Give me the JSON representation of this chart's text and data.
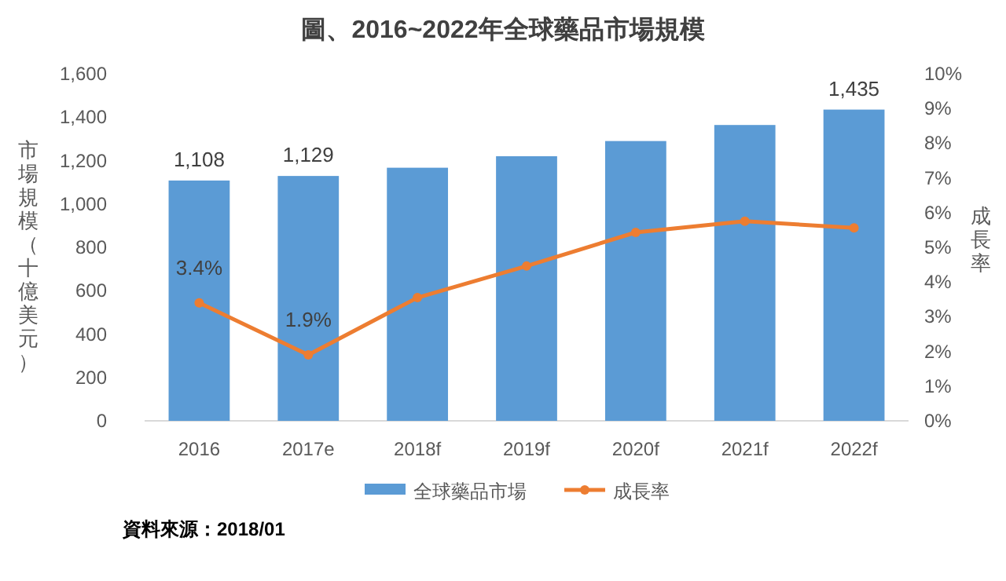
{
  "chart_data": {
    "type": "bar",
    "title": "圖、2016~2022年全球藥品市場規模",
    "ylabel": "市場規模（十億美元）",
    "y2label": "成長率",
    "categories": [
      "2016",
      "2017e",
      "2018f",
      "2019f",
      "2020f",
      "2021f",
      "2022f"
    ],
    "series": [
      {
        "name": "全球藥品市場",
        "color": "#5b9bd5",
        "values": [
          1108,
          1129,
          1167,
          1220,
          1290,
          1364,
          1435
        ],
        "value_labels": [
          "1,108",
          "1,129",
          null,
          null,
          null,
          null,
          "1,435"
        ]
      },
      {
        "name": "成長率",
        "type": "line",
        "axis": "y2",
        "color": "#ed7d31",
        "marker": "circle",
        "values": [
          3.4,
          1.9,
          3.55,
          4.46,
          5.43,
          5.75,
          5.56
        ],
        "value_labels": [
          "3.4%",
          "1.9%",
          null,
          null,
          null,
          null,
          null
        ]
      }
    ],
    "ylim": [
      0,
      1600
    ],
    "yticks": [
      {
        "value": 0,
        "label": "0"
      },
      {
        "value": 200,
        "label": "200"
      },
      {
        "value": 400,
        "label": "400"
      },
      {
        "value": 600,
        "label": "600"
      },
      {
        "value": 800,
        "label": "800"
      },
      {
        "value": 1000,
        "label": "1,000"
      },
      {
        "value": 1200,
        "label": "1,200"
      },
      {
        "value": 1400,
        "label": "1,400"
      },
      {
        "value": 1600,
        "label": "1,600"
      }
    ],
    "y2lim": [
      0,
      10
    ],
    "y2ticks": [
      {
        "value": 0,
        "label": "0%"
      },
      {
        "value": 1,
        "label": "1%"
      },
      {
        "value": 2,
        "label": "2%"
      },
      {
        "value": 3,
        "label": "3%"
      },
      {
        "value": 4,
        "label": "4%"
      },
      {
        "value": 5,
        "label": "5%"
      },
      {
        "value": 6,
        "label": "6%"
      },
      {
        "value": 7,
        "label": "7%"
      },
      {
        "value": 8,
        "label": "8%"
      },
      {
        "value": 9,
        "label": "9%"
      },
      {
        "value": 10,
        "label": "10%"
      }
    ],
    "grid": false,
    "legend": "bottom",
    "annotations": [
      "資料來源：2018/01"
    ]
  }
}
